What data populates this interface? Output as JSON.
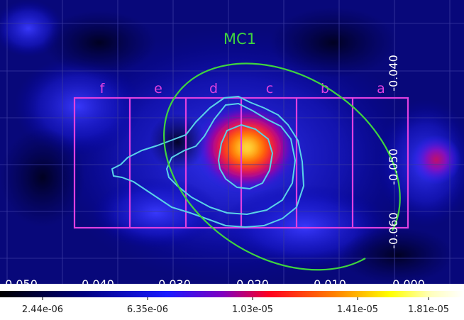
{
  "region_label": "MC1",
  "strip_labels": [
    "a",
    "b",
    "c",
    "d",
    "e",
    "f"
  ],
  "x_ticks": [
    "0.050",
    "0.040",
    "0.030",
    "0.020",
    "0.010",
    "0.000"
  ],
  "y_ticks": [
    "-0.040",
    "-0.050",
    "-0.060"
  ],
  "colorbar_ticks": [
    "2.44e-06",
    "6.35e-06",
    "1.03e-05",
    "1.41e-05",
    "1.81e-05"
  ],
  "colors": {
    "ellipse": "#3fd43f",
    "strips": "#e040e0",
    "contours": "#5ad2e8",
    "axis_text": "#ffffff",
    "grid": "#3a3aa0"
  }
}
